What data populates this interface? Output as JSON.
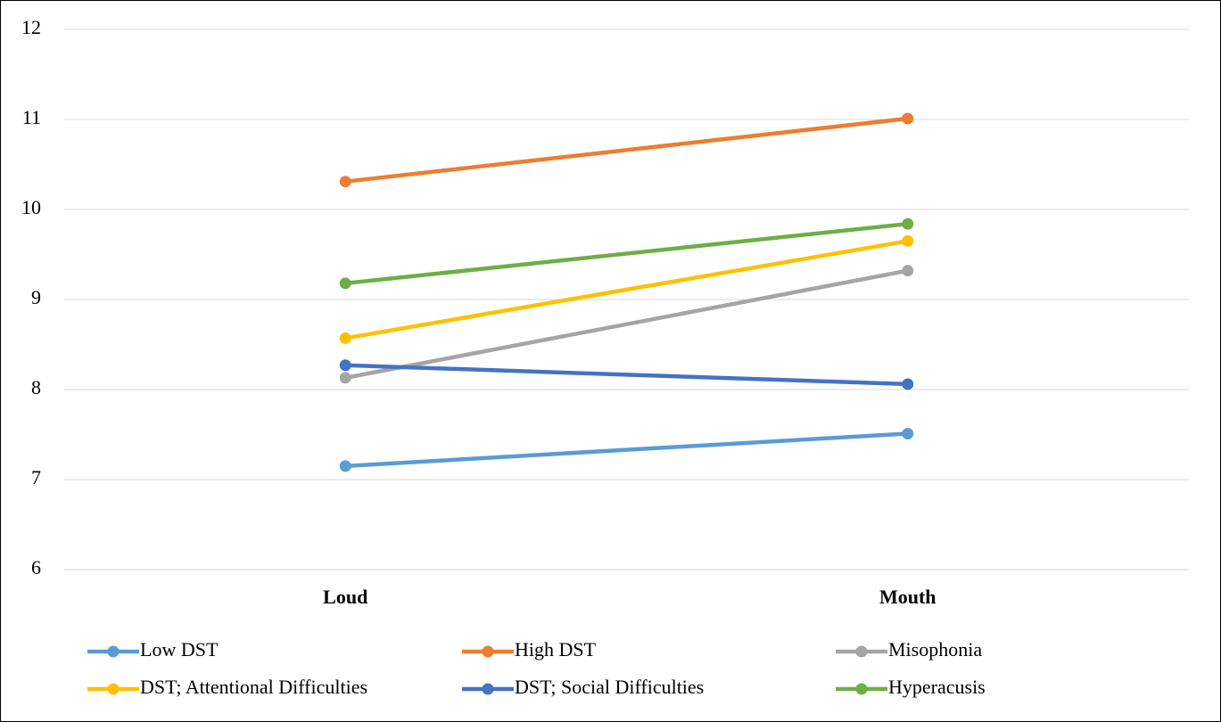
{
  "chart_data": {
    "type": "line",
    "categories": [
      "Loud",
      "Mouth"
    ],
    "series": [
      {
        "name": "Low DST",
        "color": "#5b9bd5",
        "values": [
          7.15,
          7.51
        ]
      },
      {
        "name": "High DST",
        "color": "#ed7d31",
        "values": [
          10.31,
          11.01
        ]
      },
      {
        "name": "Misophonia",
        "color": "#a5a5a5",
        "values": [
          8.13,
          9.32
        ]
      },
      {
        "name": "DST; Attentional Difficulties",
        "color": "#ffc000",
        "values": [
          8.57,
          9.65
        ]
      },
      {
        "name": "DST; Social Difficulties",
        "color": "#4472c4",
        "values": [
          8.27,
          8.06
        ]
      },
      {
        "name": "Hyperacusis",
        "color": "#70ad47",
        "values": [
          9.18,
          9.84
        ]
      }
    ],
    "ylim": [
      6,
      12
    ],
    "yticks": [
      6,
      7,
      8,
      9,
      10,
      11,
      12
    ],
    "grid": true,
    "legend": "bottom"
  }
}
